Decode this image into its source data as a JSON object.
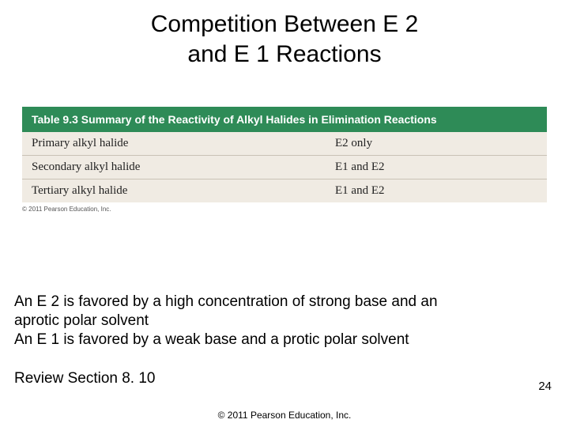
{
  "title_line1": "Competition Between E 2",
  "title_line2": "and E 1 Reactions",
  "table": {
    "header_bg": "#2e8b57",
    "header_color": "#ffffff",
    "body_bg": "#f0ebe3",
    "row_border": "#c9c2b6",
    "header": "Table 9.3   Summary of the Reactivity of Alkyl Halides in Elimination Reactions",
    "rows": [
      {
        "left": "Primary alkyl halide",
        "right": "E2 only"
      },
      {
        "left": "Secondary alkyl halide",
        "right": "E1 and E2"
      },
      {
        "left": "Tertiary alkyl halide",
        "right": "E1 and E2"
      }
    ],
    "small_copy": "© 2011 Pearson Education, Inc."
  },
  "notes": {
    "line1": "An E 2 is favored by a high concentration of strong base and an",
    "line2": "aprotic polar solvent",
    "line3": "An E 1 is favored by a weak base and a protic polar solvent"
  },
  "review": "Review Section 8. 10",
  "page_number": "24",
  "footer": "© 2011 Pearson Education, Inc."
}
